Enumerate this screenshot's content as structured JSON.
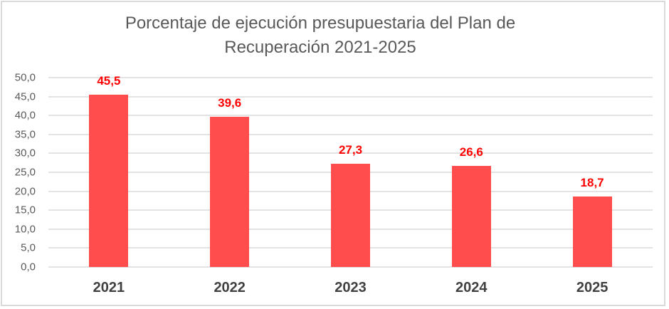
{
  "chart_data": {
    "type": "bar",
    "title": "Porcentaje de ejecución presupuestaria del Plan de Recuperación 2021-2025",
    "title_lines": [
      "Porcentaje de ejecución presupuestaria del Plan de",
      "Recuperación 2021-2025"
    ],
    "categories": [
      "2021",
      "2022",
      "2023",
      "2024",
      "2025"
    ],
    "values": [
      45.5,
      39.6,
      27.3,
      26.6,
      18.7
    ],
    "value_labels": [
      "45,5",
      "39,6",
      "27,3",
      "26,6",
      "18,7"
    ],
    "xlabel": "",
    "ylabel": "",
    "ylim": [
      0,
      50
    ],
    "yticks": [
      "0,0",
      "5,0",
      "10,0",
      "15,0",
      "20,0",
      "25,0",
      "30,0",
      "35,0",
      "40,0",
      "45,0",
      "50,0"
    ],
    "grid": true,
    "legend": null,
    "colors": {
      "bar": "#ff4d4d",
      "value_label": "#ff0000",
      "grid": "#e3e3e3",
      "axis_text": "#595959"
    }
  }
}
